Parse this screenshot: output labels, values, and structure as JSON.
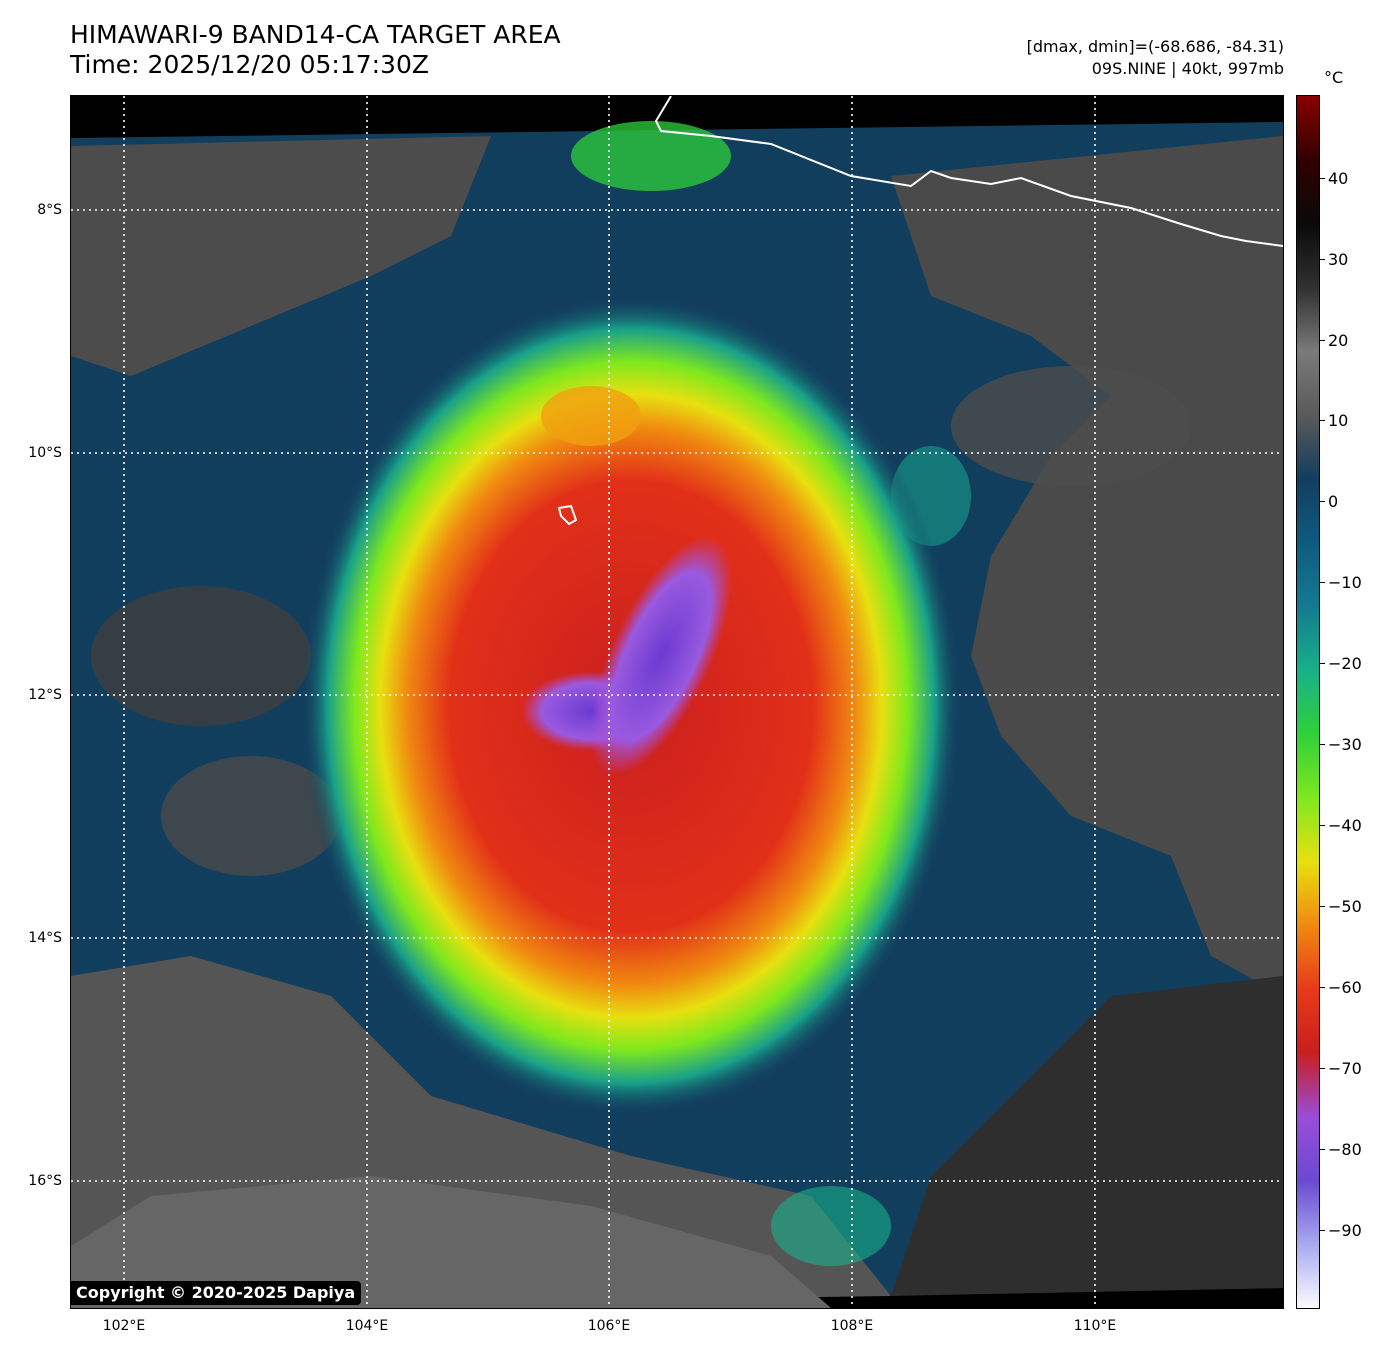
{
  "header": {
    "title": "HIMAWARI-9 BAND14-CA TARGET AREA",
    "time": "Time: 2025/12/20 05:17:30Z",
    "dminmax": "[dmax, dmin]=(-68.686, -84.31)",
    "storm": "09S.NINE | 40kt, 997mb"
  },
  "axes": {
    "lat_labels": [
      "8°S",
      "10°S",
      "12°S",
      "14°S",
      "16°S"
    ],
    "lon_labels": [
      "102°E",
      "104°E",
      "106°E",
      "108°E",
      "110°E"
    ]
  },
  "colorbar": {
    "unit": "°C",
    "ticks": [
      "40",
      "30",
      "20",
      "10",
      "0",
      "−10",
      "−20",
      "−30",
      "−40",
      "−50",
      "−60",
      "−70",
      "−80",
      "−90"
    ],
    "colors": [
      "#fbfbff",
      "#a8a8f0",
      "#6a4ad0",
      "#9a4cd8",
      "#c81e1e",
      "#e83a1a",
      "#f08a10",
      "#e8e010",
      "#7ee81e",
      "#2ed03a",
      "#18b08a",
      "#137a90",
      "#0f5a80",
      "#123e5e",
      "#5a5a5a",
      "#7a7a7a",
      "#303030",
      "#0a0a0a",
      "#300000",
      "#8a0000"
    ]
  },
  "map": {
    "background_colors": {
      "ocean": "#123e5e",
      "land": "#4a4a4a",
      "cold_top": "#d42a1a",
      "eye": "#8a5ad8",
      "coast": "#ffffff"
    }
  },
  "footer": {
    "copyright": "Copyright © 2020-2025 Dapiya"
  }
}
